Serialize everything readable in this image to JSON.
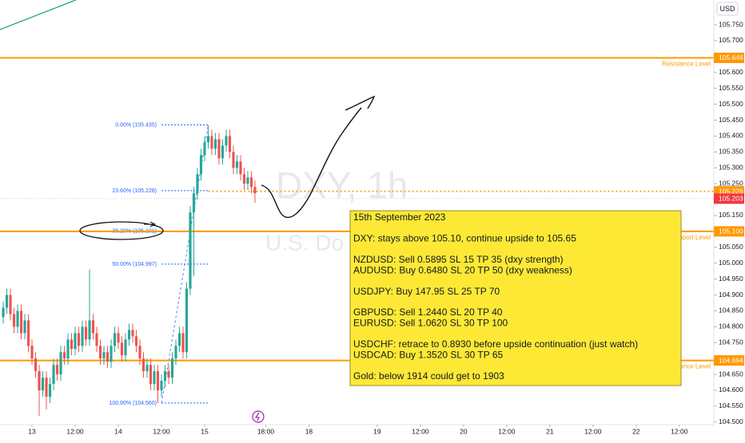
{
  "chart_data": {
    "type": "candlestick",
    "symbol": "DXY, 1h",
    "description": "U.S. Do",
    "currency": "USD",
    "up_color": "#26a69a",
    "down_color": "#ef5350",
    "grid": false,
    "x": [
      -8,
      -7,
      -6,
      -5,
      -4,
      -3,
      -2,
      -1,
      0,
      1,
      2,
      3,
      4,
      5,
      6,
      7,
      8,
      9,
      10,
      11,
      12,
      13,
      14,
      15,
      16,
      17,
      18,
      19,
      20,
      21,
      22,
      23,
      24,
      25,
      26,
      27,
      28,
      29,
      30,
      31,
      32,
      33,
      34,
      35,
      36,
      37,
      38,
      39,
      40,
      41,
      42,
      43,
      44,
      45,
      46,
      47,
      48,
      49,
      50,
      51,
      52,
      53,
      54,
      55,
      56,
      57,
      58,
      59,
      60,
      61,
      62
    ],
    "open": [
      104.83,
      104.86,
      104.9,
      104.84,
      104.8,
      104.85,
      104.78,
      104.82,
      104.74,
      104.7,
      104.66,
      104.6,
      104.64,
      104.58,
      104.62,
      104.68,
      104.65,
      104.72,
      104.7,
      104.76,
      104.73,
      104.78,
      104.74,
      104.8,
      104.76,
      104.82,
      104.78,
      104.74,
      104.7,
      104.72,
      104.69,
      104.74,
      104.78,
      104.75,
      104.71,
      104.76,
      104.79,
      104.77,
      104.74,
      104.7,
      104.66,
      104.68,
      104.62,
      104.66,
      104.6,
      104.63,
      104.66,
      104.64,
      104.7,
      104.74,
      104.78,
      104.72,
      104.92,
      105.16,
      105.22,
      105.28,
      105.34,
      105.38,
      105.4,
      105.36,
      105.39,
      105.33,
      105.37,
      105.4,
      105.35,
      105.3,
      105.32,
      105.28,
      105.25,
      105.27,
      105.24
    ],
    "high": [
      104.88,
      104.92,
      104.92,
      104.86,
      104.87,
      104.87,
      104.84,
      104.84,
      104.76,
      104.72,
      104.68,
      104.66,
      104.66,
      104.64,
      104.7,
      104.7,
      104.74,
      104.74,
      104.78,
      104.78,
      104.8,
      104.8,
      104.82,
      104.82,
      104.98,
      104.84,
      104.8,
      104.76,
      104.74,
      104.74,
      104.76,
      104.8,
      104.8,
      104.77,
      104.78,
      104.81,
      104.81,
      104.79,
      104.76,
      104.72,
      104.7,
      104.7,
      104.68,
      104.68,
      104.65,
      104.68,
      104.68,
      104.72,
      104.76,
      104.8,
      104.8,
      104.94,
      105.18,
      105.24,
      105.3,
      105.36,
      105.4,
      105.435,
      105.42,
      105.41,
      105.41,
      105.39,
      105.42,
      105.42,
      105.37,
      105.34,
      105.34,
      105.3,
      105.29,
      105.29,
      105.26
    ],
    "low": [
      104.81,
      104.84,
      104.82,
      104.78,
      104.78,
      104.76,
      104.76,
      104.72,
      104.68,
      104.64,
      104.52,
      104.58,
      104.54,
      104.56,
      104.6,
      104.63,
      104.63,
      104.68,
      104.68,
      104.71,
      104.71,
      104.72,
      104.72,
      104.74,
      104.74,
      104.76,
      104.72,
      104.68,
      104.68,
      104.67,
      104.67,
      104.72,
      104.73,
      104.69,
      104.69,
      104.74,
      104.75,
      104.72,
      104.68,
      104.64,
      104.64,
      104.6,
      104.6,
      104.56,
      104.58,
      104.61,
      104.62,
      104.62,
      104.68,
      104.72,
      104.7,
      104.7,
      104.9,
      104.96,
      105.2,
      105.26,
      105.32,
      105.36,
      105.34,
      105.34,
      105.31,
      105.31,
      105.35,
      105.33,
      105.28,
      105.28,
      105.26,
      105.23,
      105.23,
      105.22,
      105.19
    ],
    "close": [
      104.86,
      104.9,
      104.84,
      104.8,
      104.85,
      104.78,
      104.82,
      104.74,
      104.7,
      104.66,
      104.6,
      104.64,
      104.58,
      104.62,
      104.68,
      104.65,
      104.72,
      104.7,
      104.76,
      104.73,
      104.78,
      104.74,
      104.8,
      104.76,
      104.82,
      104.78,
      104.74,
      104.7,
      104.72,
      104.69,
      104.74,
      104.78,
      104.75,
      104.71,
      104.76,
      104.79,
      104.77,
      104.74,
      104.7,
      104.66,
      104.68,
      104.62,
      104.66,
      104.6,
      104.63,
      104.66,
      104.64,
      104.7,
      104.74,
      104.78,
      104.72,
      104.92,
      105.16,
      105.22,
      105.28,
      105.34,
      105.38,
      105.4,
      105.36,
      105.39,
      105.33,
      105.37,
      105.4,
      105.35,
      105.3,
      105.32,
      105.28,
      105.25,
      105.27,
      105.24,
      105.22
    ],
    "xlim": [
      -8.9,
      189.6
    ],
    "ylim": [
      104.492,
      105.828
    ],
    "xticks": [
      {
        "value": 0,
        "label": "13"
      },
      {
        "value": 12,
        "label": "12:00"
      },
      {
        "value": 24,
        "label": "14"
      },
      {
        "value": 36,
        "label": "12:00"
      },
      {
        "value": 48,
        "label": "15"
      },
      {
        "value": 65,
        "label": "18:00"
      },
      {
        "value": 77,
        "label": "18"
      },
      {
        "value": 96,
        "label": "19"
      },
      {
        "value": 108,
        "label": "12:00"
      },
      {
        "value": 120,
        "label": "20"
      },
      {
        "value": 132,
        "label": "12:00"
      },
      {
        "value": 144,
        "label": "21"
      },
      {
        "value": 156,
        "label": "12:00"
      },
      {
        "value": 168,
        "label": "22"
      },
      {
        "value": 180,
        "label": "12:00"
      }
    ],
    "yticks": [
      {
        "value": 104.5,
        "label": "104.500"
      },
      {
        "value": 104.55,
        "label": "104.550"
      },
      {
        "value": 104.6,
        "label": "104.600"
      },
      {
        "value": 104.65,
        "label": "104.650"
      },
      {
        "value": 104.7,
        "label": "104.700"
      },
      {
        "value": 104.75,
        "label": "104.750"
      },
      {
        "value": 104.8,
        "label": "104.800"
      },
      {
        "value": 104.85,
        "label": "104.850"
      },
      {
        "value": 104.9,
        "label": "104.900"
      },
      {
        "value": 104.95,
        "label": "104.950"
      },
      {
        "value": 105,
        "label": "105.000"
      },
      {
        "value": 105.05,
        "label": "105.050"
      },
      {
        "value": 105.1,
        "label": "105.100"
      },
      {
        "value": 105.15,
        "label": "105.150"
      },
      {
        "value": 105.2,
        "label": "105.200"
      },
      {
        "value": 105.25,
        "label": "105.250"
      },
      {
        "value": 105.3,
        "label": "105.300"
      },
      {
        "value": 105.35,
        "label": "105.350"
      },
      {
        "value": 105.4,
        "label": "105.400"
      },
      {
        "value": 105.45,
        "label": "105.450"
      },
      {
        "value": 105.5,
        "label": "105.500"
      },
      {
        "value": 105.55,
        "label": "105.550"
      },
      {
        "value": 105.6,
        "label": "105.600"
      },
      {
        "value": 105.65,
        "label": "105.650"
      },
      {
        "value": 105.7,
        "label": "105.700"
      },
      {
        "value": 105.75,
        "label": "105.750"
      }
    ],
    "levels": [
      {
        "name": "Resistance Level",
        "value": 105.646,
        "tag": "105.646",
        "color": "#ff9800"
      },
      {
        "name": "Support Level",
        "value": 105.1,
        "tag": "105.100",
        "color": "#ff9800"
      },
      {
        "name": "Resistance Level",
        "value": 104.694,
        "tag": "104.694",
        "color": "#ff9800"
      }
    ],
    "markers": [
      {
        "value": 105.226,
        "tag": "105.226",
        "color": "#ff9800"
      },
      {
        "value": 105.203,
        "tag": "105.203",
        "color": "#f23645"
      }
    ],
    "fib": [
      {
        "value": 105.435,
        "label": "0.00% (105.435)"
      },
      {
        "value": 105.228,
        "label": "23.60% (105.228)"
      },
      {
        "value": 105.101,
        "label": "38.20% (105.101)"
      },
      {
        "value": 104.997,
        "label": "50.00% (104.997)"
      },
      {
        "value": 104.56,
        "label": "100.00% (104.560)"
      }
    ],
    "fib_color": "#2962ff"
  },
  "note": {
    "date": "15th September 2023",
    "groups": [
      [
        "DXY: stays above 105.10, continue upside to 105.65"
      ],
      [
        "NZDUSD: Sell 0.5895 SL 15 TP 35 (dxy strength)",
        "AUDUSD: Buy 0.6480 SL 20 TP 50 (dxy weakness)"
      ],
      [
        "USDJPY: Buy 147.95 SL 25 TP 70"
      ],
      [
        "GBPUSD: Sell 1.2440 SL 20 TP 40",
        "EURUSD: Sell 1.0620 SL 30 TP 100"
      ],
      [
        "USDCHF: retrace to 0.8930 before upside continuation (just watch)",
        "USDCAD: Buy 1.3520 SL 30 TP 65"
      ],
      [
        "Gold: below 1914 could get to 1903"
      ]
    ]
  }
}
